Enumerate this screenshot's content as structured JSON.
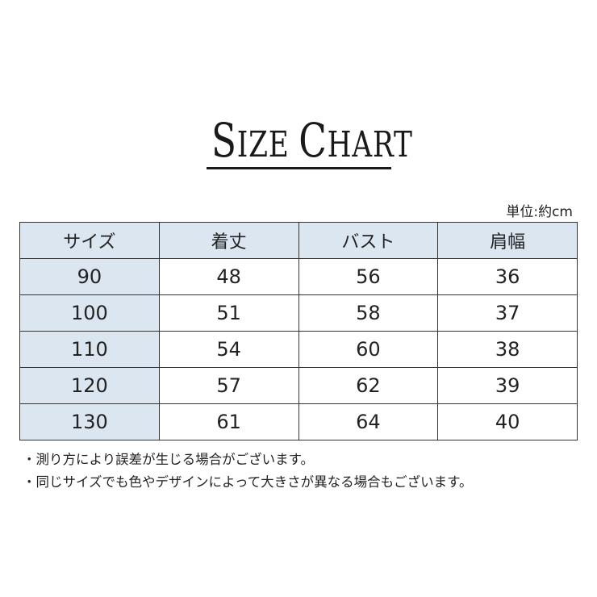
{
  "title": {
    "first_letter_1": "S",
    "rest_1": "IZE",
    "first_letter_2": "C",
    "rest_2": "HART"
  },
  "unit": "単位:約cm",
  "table": {
    "headers": [
      "サイズ",
      "着丈",
      "バスト",
      "肩幅"
    ],
    "rows": [
      [
        "90",
        "48",
        "56",
        "36"
      ],
      [
        "100",
        "51",
        "58",
        "37"
      ],
      [
        "110",
        "54",
        "60",
        "38"
      ],
      [
        "120",
        "57",
        "62",
        "39"
      ],
      [
        "130",
        "61",
        "64",
        "40"
      ]
    ]
  },
  "notes": [
    "・測り方により誤差が生じる場合がございます。",
    "・同じサイズでも色やデザインによって大きさが異なる場合もございます。"
  ],
  "colors": {
    "header_bg": "#dce6f1",
    "border": "#333333"
  }
}
